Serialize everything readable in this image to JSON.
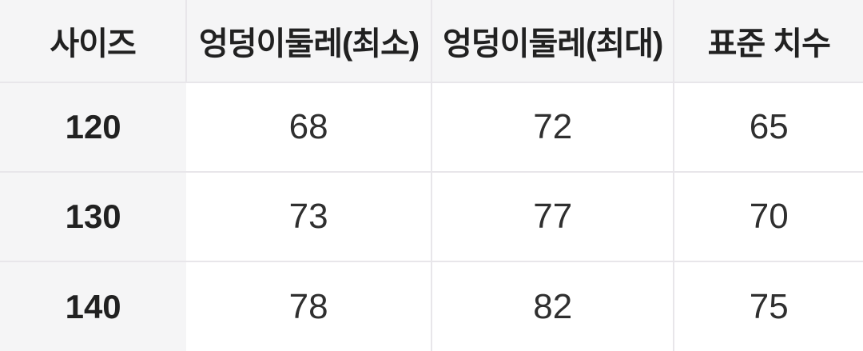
{
  "chart_data": {
    "type": "table",
    "title": "size-spec-table",
    "columns": [
      "사이즈",
      "엉덩이둘레(최소)",
      "엉덩이둘레(최대)",
      "표준 치수"
    ],
    "rows": [
      {
        "size": "120",
        "hip_min": "68",
        "hip_max": "72",
        "standard": "65"
      },
      {
        "size": "130",
        "hip_min": "73",
        "hip_max": "77",
        "standard": "70"
      },
      {
        "size": "140",
        "hip_min": "78",
        "hip_max": "82",
        "standard": "75"
      }
    ]
  },
  "colors": {
    "header_bg": "#f5f5f6",
    "cell_bg": "#ffffff",
    "grid_line": "#e8e6ea",
    "header_text": "#212121",
    "cell_text": "#2f2f2f"
  }
}
